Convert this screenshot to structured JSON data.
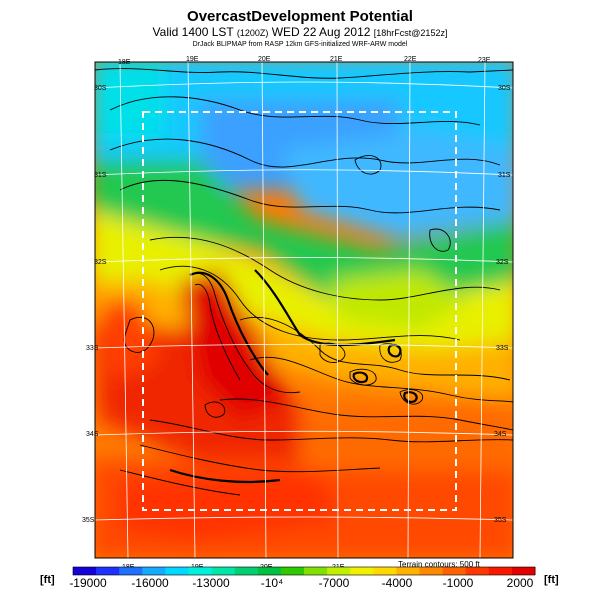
{
  "title": "OvercastDevelopment Potential",
  "subtitle_main": "Valid 1400 LST",
  "subtitle_small": "(1200Z)",
  "subtitle_date": "WED 22 Aug 2012",
  "subtitle_fcst": "[18hrFcst@2152z]",
  "credit": "DrJack BLIPMAP from RASP 12km GFS-initialized WRF-ARW model",
  "lon_labels": [
    "18E",
    "19E",
    "20E",
    "21E",
    "22E",
    "23E"
  ],
  "lat_labels": [
    "30S",
    "31S",
    "32S",
    "33S",
    "34S",
    "35S"
  ],
  "terrain_note": "Terrain contours: 500 ft",
  "units_left": "[ft]",
  "units_right": "[ft]",
  "colorbar": {
    "labels": [
      "-19000",
      "-16000",
      "-13000",
      "-10⁴",
      "-7000",
      "-4000",
      "-1000",
      "2000"
    ],
    "colors": [
      "#1400d8",
      "#1e32ff",
      "#1e70ff",
      "#14aaff",
      "#00d8ff",
      "#00f0e0",
      "#00e6a8",
      "#00d070",
      "#00c040",
      "#30c800",
      "#80e000",
      "#c0f000",
      "#f0f000",
      "#ffd800",
      "#ffb000",
      "#ff8800",
      "#ff6000",
      "#ff3800",
      "#f81800",
      "#e00000"
    ]
  }
}
